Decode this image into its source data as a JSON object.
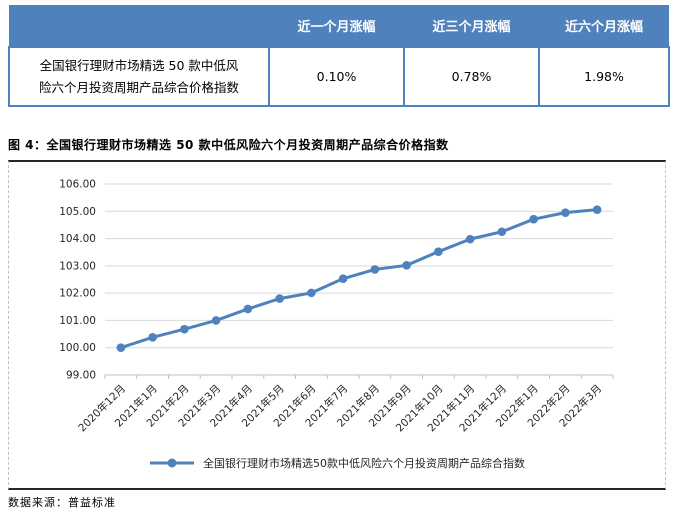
{
  "table": {
    "columns": [
      "近一个月涨幅",
      "近三个月涨幅",
      "近六个月涨幅"
    ],
    "rows": [
      {
        "label": "全国银行理财市场精选 50 款中低风险六个月投资周期产品综合价格指数",
        "values": [
          "0.10%",
          "0.78%",
          "1.98%"
        ]
      }
    ]
  },
  "figure": {
    "title": "图 4：全国银行理财市场精选 50 款中低风险六个月投资周期产品综合价格指数"
  },
  "chart_data": {
    "type": "line",
    "categories": [
      "2020年12月",
      "2021年1月",
      "2021年2月",
      "2021年3月",
      "2021年4月",
      "2021年5月",
      "2021年6月",
      "2021年7月",
      "2021年8月",
      "2021年9月",
      "2021年10月",
      "2021年11月",
      "2021年12月",
      "2022年1月",
      "2022年2月",
      "2022年3月"
    ],
    "series": [
      {
        "name": "全国银行理财市场精选50款中低风险六个月投资周期产品综合指数",
        "values": [
          100.0,
          100.38,
          100.68,
          101.0,
          101.42,
          101.8,
          102.01,
          102.53,
          102.87,
          103.02,
          103.52,
          103.98,
          104.25,
          104.71,
          104.95,
          105.06
        ]
      }
    ],
    "title": "",
    "xlabel": "",
    "ylabel": "",
    "ylim": [
      99,
      106
    ],
    "ytick_step": 1,
    "ytick_decimals": 2,
    "grid": true,
    "legend_position": "bottom",
    "line_color": "#4F81BD",
    "marker_color": "#4F81BD",
    "gridline_color": "#D9D9D9",
    "axis_color": "#BFBFBF",
    "tick_label_color": "#262626"
  },
  "source_note": "数据来源：普益标准",
  "colors": {
    "header_bg": "#4F81BD",
    "table_border": "#4F81BD",
    "accent_blue": "#4F81BD"
  }
}
